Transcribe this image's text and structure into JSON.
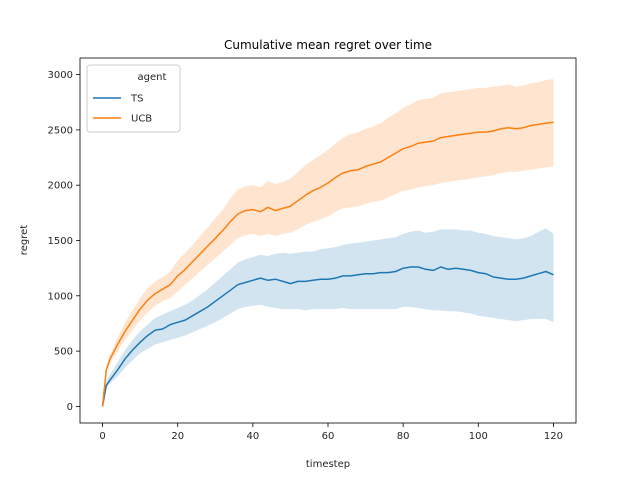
{
  "chart_data": {
    "type": "line",
    "title": "Cumulative mean regret over time",
    "xlabel": "timestep",
    "ylabel": "regret",
    "xlim": [
      -6,
      126
    ],
    "ylim": [
      -150,
      3150
    ],
    "xticks": [
      0,
      20,
      40,
      60,
      80,
      100,
      120
    ],
    "yticks": [
      0,
      500,
      1000,
      1500,
      2000,
      2500,
      3000
    ],
    "grid": false,
    "legend": {
      "title": "agent",
      "placement": "upper-left"
    },
    "x": [
      0,
      1,
      2,
      4,
      6,
      8,
      10,
      12,
      14,
      16,
      18,
      20,
      22,
      24,
      26,
      28,
      30,
      32,
      34,
      36,
      38,
      40,
      42,
      44,
      46,
      48,
      50,
      52,
      54,
      56,
      58,
      60,
      62,
      64,
      66,
      68,
      70,
      72,
      74,
      76,
      78,
      80,
      82,
      84,
      86,
      88,
      90,
      92,
      94,
      96,
      98,
      100,
      102,
      104,
      106,
      108,
      110,
      112,
      114,
      116,
      118,
      120
    ],
    "series": [
      {
        "name": "TS",
        "color": "#1f77b4",
        "band_color": "#1f77b4",
        "values": [
          0,
          190,
          240,
          330,
          430,
          510,
          580,
          640,
          690,
          700,
          740,
          760,
          780,
          820,
          860,
          900,
          950,
          1000,
          1050,
          1100,
          1120,
          1140,
          1160,
          1140,
          1150,
          1130,
          1110,
          1130,
          1130,
          1140,
          1150,
          1150,
          1160,
          1180,
          1180,
          1190,
          1200,
          1200,
          1210,
          1210,
          1220,
          1250,
          1260,
          1260,
          1240,
          1230,
          1260,
          1240,
          1250,
          1240,
          1230,
          1210,
          1200,
          1170,
          1160,
          1150,
          1150,
          1160,
          1180,
          1200,
          1220,
          1190
        ],
        "lower": [
          0,
          160,
          210,
          270,
          350,
          420,
          480,
          520,
          560,
          580,
          600,
          620,
          640,
          670,
          700,
          730,
          760,
          800,
          840,
          880,
          900,
          910,
          920,
          900,
          890,
          880,
          880,
          880,
          870,
          880,
          880,
          880,
          880,
          890,
          880,
          880,
          880,
          880,
          880,
          880,
          880,
          900,
          900,
          890,
          880,
          870,
          870,
          860,
          860,
          850,
          840,
          820,
          810,
          800,
          790,
          780,
          770,
          780,
          790,
          790,
          790,
          760
        ],
        "upper": [
          0,
          230,
          290,
          400,
          510,
          600,
          680,
          740,
          800,
          830,
          860,
          890,
          920,
          960,
          1010,
          1060,
          1120,
          1180,
          1240,
          1300,
          1330,
          1350,
          1370,
          1360,
          1380,
          1390,
          1380,
          1390,
          1400,
          1400,
          1420,
          1430,
          1440,
          1460,
          1470,
          1480,
          1490,
          1500,
          1510,
          1520,
          1530,
          1560,
          1580,
          1590,
          1570,
          1580,
          1600,
          1600,
          1600,
          1590,
          1590,
          1570,
          1560,
          1540,
          1530,
          1520,
          1510,
          1520,
          1540,
          1580,
          1610,
          1560
        ]
      },
      {
        "name": "UCB",
        "color": "#ff7f0e",
        "band_color": "#ff7f0e",
        "values": [
          0,
          330,
          430,
          560,
          680,
          780,
          880,
          960,
          1020,
          1060,
          1100,
          1180,
          1240,
          1310,
          1380,
          1450,
          1520,
          1590,
          1670,
          1740,
          1770,
          1780,
          1760,
          1800,
          1770,
          1790,
          1810,
          1860,
          1910,
          1950,
          1980,
          2020,
          2070,
          2110,
          2130,
          2140,
          2170,
          2190,
          2210,
          2250,
          2290,
          2330,
          2350,
          2380,
          2390,
          2400,
          2430,
          2440,
          2450,
          2460,
          2470,
          2480,
          2480,
          2490,
          2510,
          2520,
          2510,
          2520,
          2540,
          2550,
          2560,
          2570
        ],
        "lower": [
          0,
          300,
          390,
          500,
          600,
          690,
          780,
          850,
          910,
          950,
          980,
          1040,
          1100,
          1160,
          1220,
          1280,
          1340,
          1400,
          1460,
          1520,
          1550,
          1560,
          1540,
          1560,
          1540,
          1560,
          1570,
          1600,
          1640,
          1670,
          1690,
          1720,
          1760,
          1790,
          1800,
          1810,
          1830,
          1850,
          1860,
          1890,
          1920,
          1950,
          1960,
          1980,
          1990,
          2000,
          2020,
          2030,
          2040,
          2050,
          2060,
          2070,
          2080,
          2090,
          2110,
          2120,
          2120,
          2130,
          2140,
          2150,
          2160,
          2170
        ],
        "upper": [
          0,
          360,
          470,
          620,
          760,
          870,
          980,
          1070,
          1130,
          1170,
          1220,
          1320,
          1390,
          1460,
          1540,
          1620,
          1700,
          1780,
          1880,
          1960,
          1990,
          2000,
          1980,
          2040,
          2010,
          2030,
          2060,
          2120,
          2180,
          2230,
          2270,
          2320,
          2380,
          2430,
          2460,
          2480,
          2510,
          2530,
          2560,
          2610,
          2650,
          2700,
          2730,
          2770,
          2780,
          2790,
          2830,
          2840,
          2850,
          2860,
          2870,
          2880,
          2880,
          2890,
          2900,
          2910,
          2890,
          2900,
          2920,
          2930,
          2950,
          2960
        ]
      }
    ]
  }
}
